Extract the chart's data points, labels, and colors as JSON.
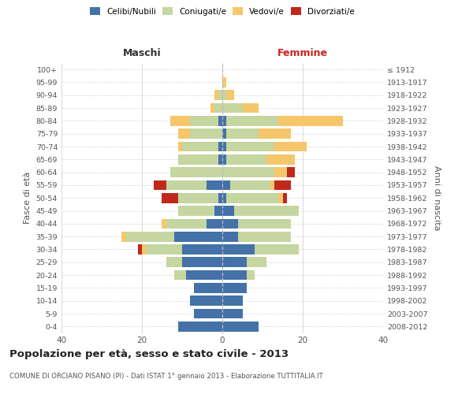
{
  "age_groups": [
    "0-4",
    "5-9",
    "10-14",
    "15-19",
    "20-24",
    "25-29",
    "30-34",
    "35-39",
    "40-44",
    "45-49",
    "50-54",
    "55-59",
    "60-64",
    "65-69",
    "70-74",
    "75-79",
    "80-84",
    "85-89",
    "90-94",
    "95-99",
    "100+"
  ],
  "birth_years": [
    "2008-2012",
    "2003-2007",
    "1998-2002",
    "1993-1997",
    "1988-1992",
    "1983-1987",
    "1978-1982",
    "1973-1977",
    "1968-1972",
    "1963-1967",
    "1958-1962",
    "1953-1957",
    "1948-1952",
    "1943-1947",
    "1938-1942",
    "1933-1937",
    "1928-1932",
    "1923-1927",
    "1918-1922",
    "1913-1917",
    "≤ 1912"
  ],
  "male": {
    "celibi": [
      11,
      7,
      8,
      7,
      9,
      10,
      10,
      12,
      4,
      2,
      1,
      4,
      0,
      1,
      1,
      0,
      1,
      0,
      0,
      0,
      0
    ],
    "coniugati": [
      0,
      0,
      0,
      0,
      3,
      4,
      9,
      12,
      10,
      9,
      10,
      10,
      13,
      10,
      9,
      8,
      7,
      2,
      1,
      0,
      0
    ],
    "vedovi": [
      0,
      0,
      0,
      0,
      0,
      0,
      1,
      1,
      1,
      0,
      0,
      0,
      0,
      0,
      1,
      3,
      5,
      1,
      1,
      0,
      0
    ],
    "divorziati": [
      0,
      0,
      0,
      0,
      0,
      0,
      1,
      0,
      0,
      0,
      4,
      3,
      0,
      0,
      0,
      0,
      0,
      0,
      0,
      0,
      0
    ]
  },
  "female": {
    "nubili": [
      9,
      5,
      5,
      6,
      6,
      6,
      8,
      4,
      4,
      3,
      1,
      2,
      0,
      1,
      1,
      1,
      1,
      0,
      0,
      0,
      0
    ],
    "coniugate": [
      0,
      0,
      0,
      0,
      2,
      5,
      11,
      13,
      13,
      16,
      13,
      10,
      13,
      10,
      12,
      8,
      13,
      5,
      1,
      0,
      0
    ],
    "vedove": [
      0,
      0,
      0,
      0,
      0,
      0,
      0,
      0,
      0,
      0,
      1,
      1,
      3,
      7,
      8,
      8,
      16,
      4,
      2,
      1,
      0
    ],
    "divorziate": [
      0,
      0,
      0,
      0,
      0,
      0,
      0,
      0,
      0,
      0,
      1,
      4,
      2,
      0,
      0,
      0,
      0,
      0,
      0,
      0,
      0
    ]
  },
  "colors": {
    "celibi": "#4472a8",
    "coniugati": "#c5d6a0",
    "vedovi": "#f5c76a",
    "divorziati": "#c0281c"
  },
  "xlim": 40,
  "title": "Popolazione per età, sesso e stato civile - 2013",
  "subtitle": "COMUNE DI ORCIANO PISANO (PI) - Dati ISTAT 1° gennaio 2013 - Elaborazione TUTTITALIA.IT",
  "ylabel_left": "Fasce di età",
  "ylabel_right": "Anni di nascita",
  "label_maschi": "Maschi",
  "label_femmine": "Femmine",
  "bg_color": "#ffffff",
  "grid_color": "#cccccc",
  "legend": [
    "Celibi/Nubili",
    "Coniugati/e",
    "Vedovi/e",
    "Divorziati/e"
  ]
}
